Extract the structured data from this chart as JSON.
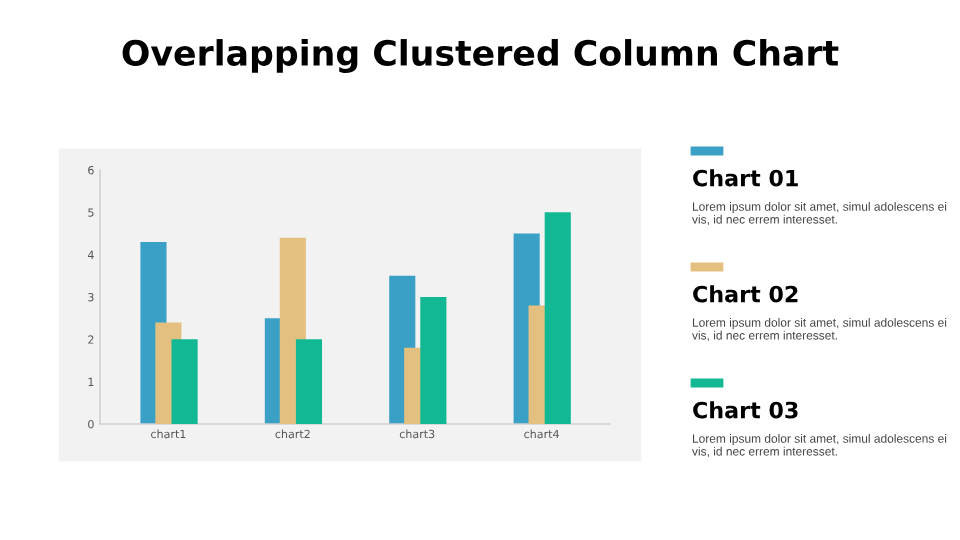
{
  "chart_data": {
    "type": "bar",
    "title": "Overlapping Clustered Column Chart",
    "categories": [
      "chart1",
      "chart2",
      "chart3",
      "chart4"
    ],
    "series": [
      {
        "name": "Chart 01",
        "color": "#3aa0c6",
        "values": [
          4.3,
          2.5,
          3.5,
          4.5
        ]
      },
      {
        "name": "Chart 02",
        "color": "#e3c080",
        "values": [
          2.4,
          4.4,
          1.8,
          2.8
        ]
      },
      {
        "name": "Chart 03",
        "color": "#12b894",
        "values": [
          2,
          2,
          3,
          5
        ]
      }
    ],
    "annotations": [
      "Lorem ipsum dolor sit amet, simul adolescens ei vis, id nec errem interesset.",
      "Lorem ipsum dolor sit amet, simul adolescens ei vis, id nec errem interesset.",
      "Lorem ipsum dolor sit amet, simul adolescens ei vis, id nec errem interesset."
    ],
    "ylim": [
      0,
      6
    ],
    "yticks": [
      0,
      1,
      2,
      3,
      4,
      5,
      6
    ],
    "grid": false,
    "legend": "right"
  }
}
